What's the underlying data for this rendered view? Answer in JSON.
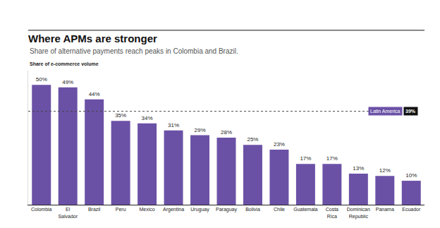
{
  "chart_data": {
    "type": "bar",
    "title": "Where APMs are stronger",
    "subtitle": "Share of alternative payments reach peaks in Colombia and Brazil.",
    "y_label": "Share of e-commerce volume",
    "categories": [
      "Colombia",
      "El Salvador",
      "Brazil",
      "Peru",
      "Mexico",
      "Argentina",
      "Uruguay",
      "Paraguay",
      "Bolivia",
      "Chile",
      "Guatemala",
      "Costa Rica",
      "Dominican Republic",
      "Panama",
      "Ecuador"
    ],
    "values": [
      50,
      49,
      44,
      35,
      34,
      31,
      29,
      28,
      25,
      23,
      17,
      17,
      13,
      12,
      10
    ],
    "value_labels": [
      "50%",
      "49%",
      "44%",
      "35%",
      "34%",
      "31%",
      "29%",
      "28%",
      "25%",
      "23%",
      "17%",
      "17%",
      "13%",
      "12%",
      "10%"
    ],
    "reference": {
      "name": "Latin America",
      "value": 39,
      "label": "39%"
    },
    "color": "#6b51a6",
    "ylim": [
      0,
      56
    ],
    "yticks": [
      0
    ],
    "grid": false,
    "data_labels": true,
    "tick_labels": "x"
  }
}
